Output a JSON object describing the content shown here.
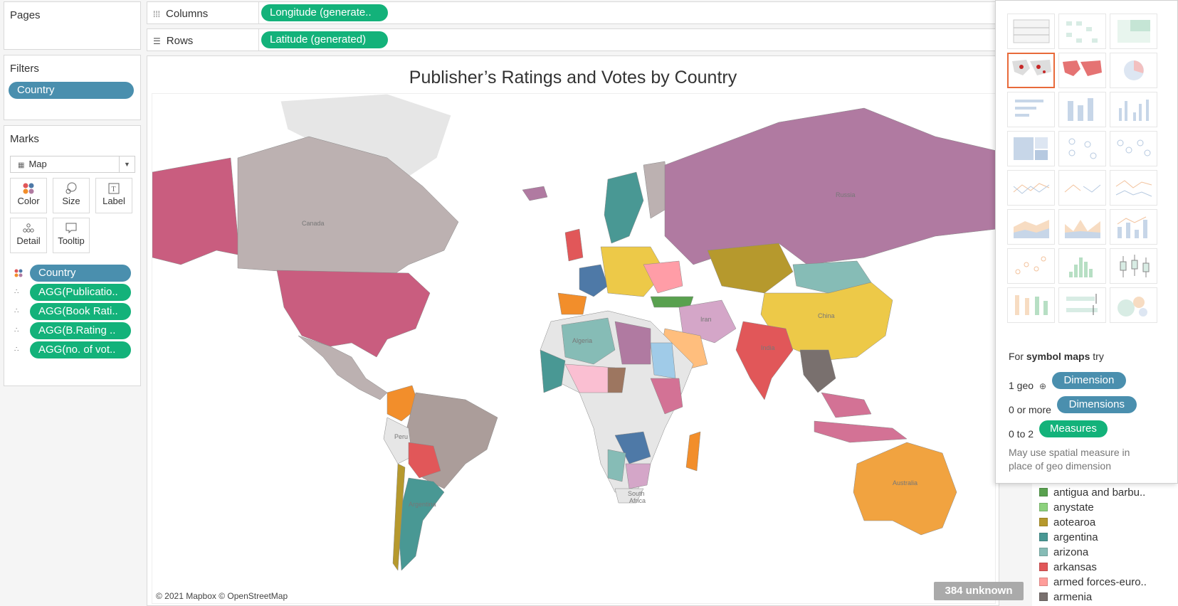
{
  "sidebar": {
    "pages_title": "Pages",
    "filters_title": "Filters",
    "filter_pills": [
      "Country"
    ],
    "marks_title": "Marks",
    "mark_type": "Map",
    "mark_buttons": {
      "color": "Color",
      "size": "Size",
      "label": "Label",
      "detail": "Detail",
      "tooltip": "Tooltip"
    },
    "mark_fields": [
      {
        "label": "Country",
        "kind": "color",
        "color": "#4a8fae"
      },
      {
        "label": "AGG(Publicatio..",
        "kind": "detail",
        "color": "#13b27a"
      },
      {
        "label": "AGG(Book Rati..",
        "kind": "detail",
        "color": "#13b27a"
      },
      {
        "label": "AGG(B.Rating ..",
        "kind": "detail",
        "color": "#13b27a"
      },
      {
        "label": "AGG(no. of vot..",
        "kind": "detail",
        "color": "#13b27a"
      }
    ]
  },
  "shelves": {
    "columns_label": "Columns",
    "columns_pill": "Longitude (generate..",
    "rows_label": "Rows",
    "rows_pill": "Latitude (generated)"
  },
  "view": {
    "title": "Publisher’s Ratings and Votes by Country",
    "attribution": "© 2021 Mapbox © OpenStreetMap",
    "unknown_badge": "384 unknown",
    "country_labels": {
      "russia": "Russia",
      "china": "China",
      "canada": "Canada",
      "australia": "Australia",
      "algeria": "Algeria",
      "peru": "Peru",
      "argentina": "Argentina",
      "south_africa_1": "South",
      "south_africa_2": "Africa",
      "india": "India",
      "iran": "Iran"
    }
  },
  "showme": {
    "hint_prefix": "For ",
    "hint_bold": "symbol maps",
    "hint_suffix": " try",
    "requirements": [
      {
        "prefix": "1 geo",
        "pill": "Dimension",
        "color": "#4a8fae"
      },
      {
        "prefix": "0 or more",
        "pill": "Dimensions",
        "color": "#4a8fae"
      },
      {
        "prefix": "0 to 2",
        "pill": "Measures",
        "color": "#13b27a"
      }
    ],
    "note": "May use spatial measure in place of geo dimension"
  },
  "legend": [
    {
      "label": "antigua and barbu..",
      "color": "#59a14f"
    },
    {
      "label": "anystate",
      "color": "#8cd17d"
    },
    {
      "label": "aotearoa",
      "color": "#b6992d"
    },
    {
      "label": "argentina",
      "color": "#499894"
    },
    {
      "label": "arizona",
      "color": "#86bcb6"
    },
    {
      "label": "arkansas",
      "color": "#e15759"
    },
    {
      "label": "armed forces-euro..",
      "color": "#ff9d9a"
    },
    {
      "label": "armenia",
      "color": "#79706e"
    }
  ]
}
